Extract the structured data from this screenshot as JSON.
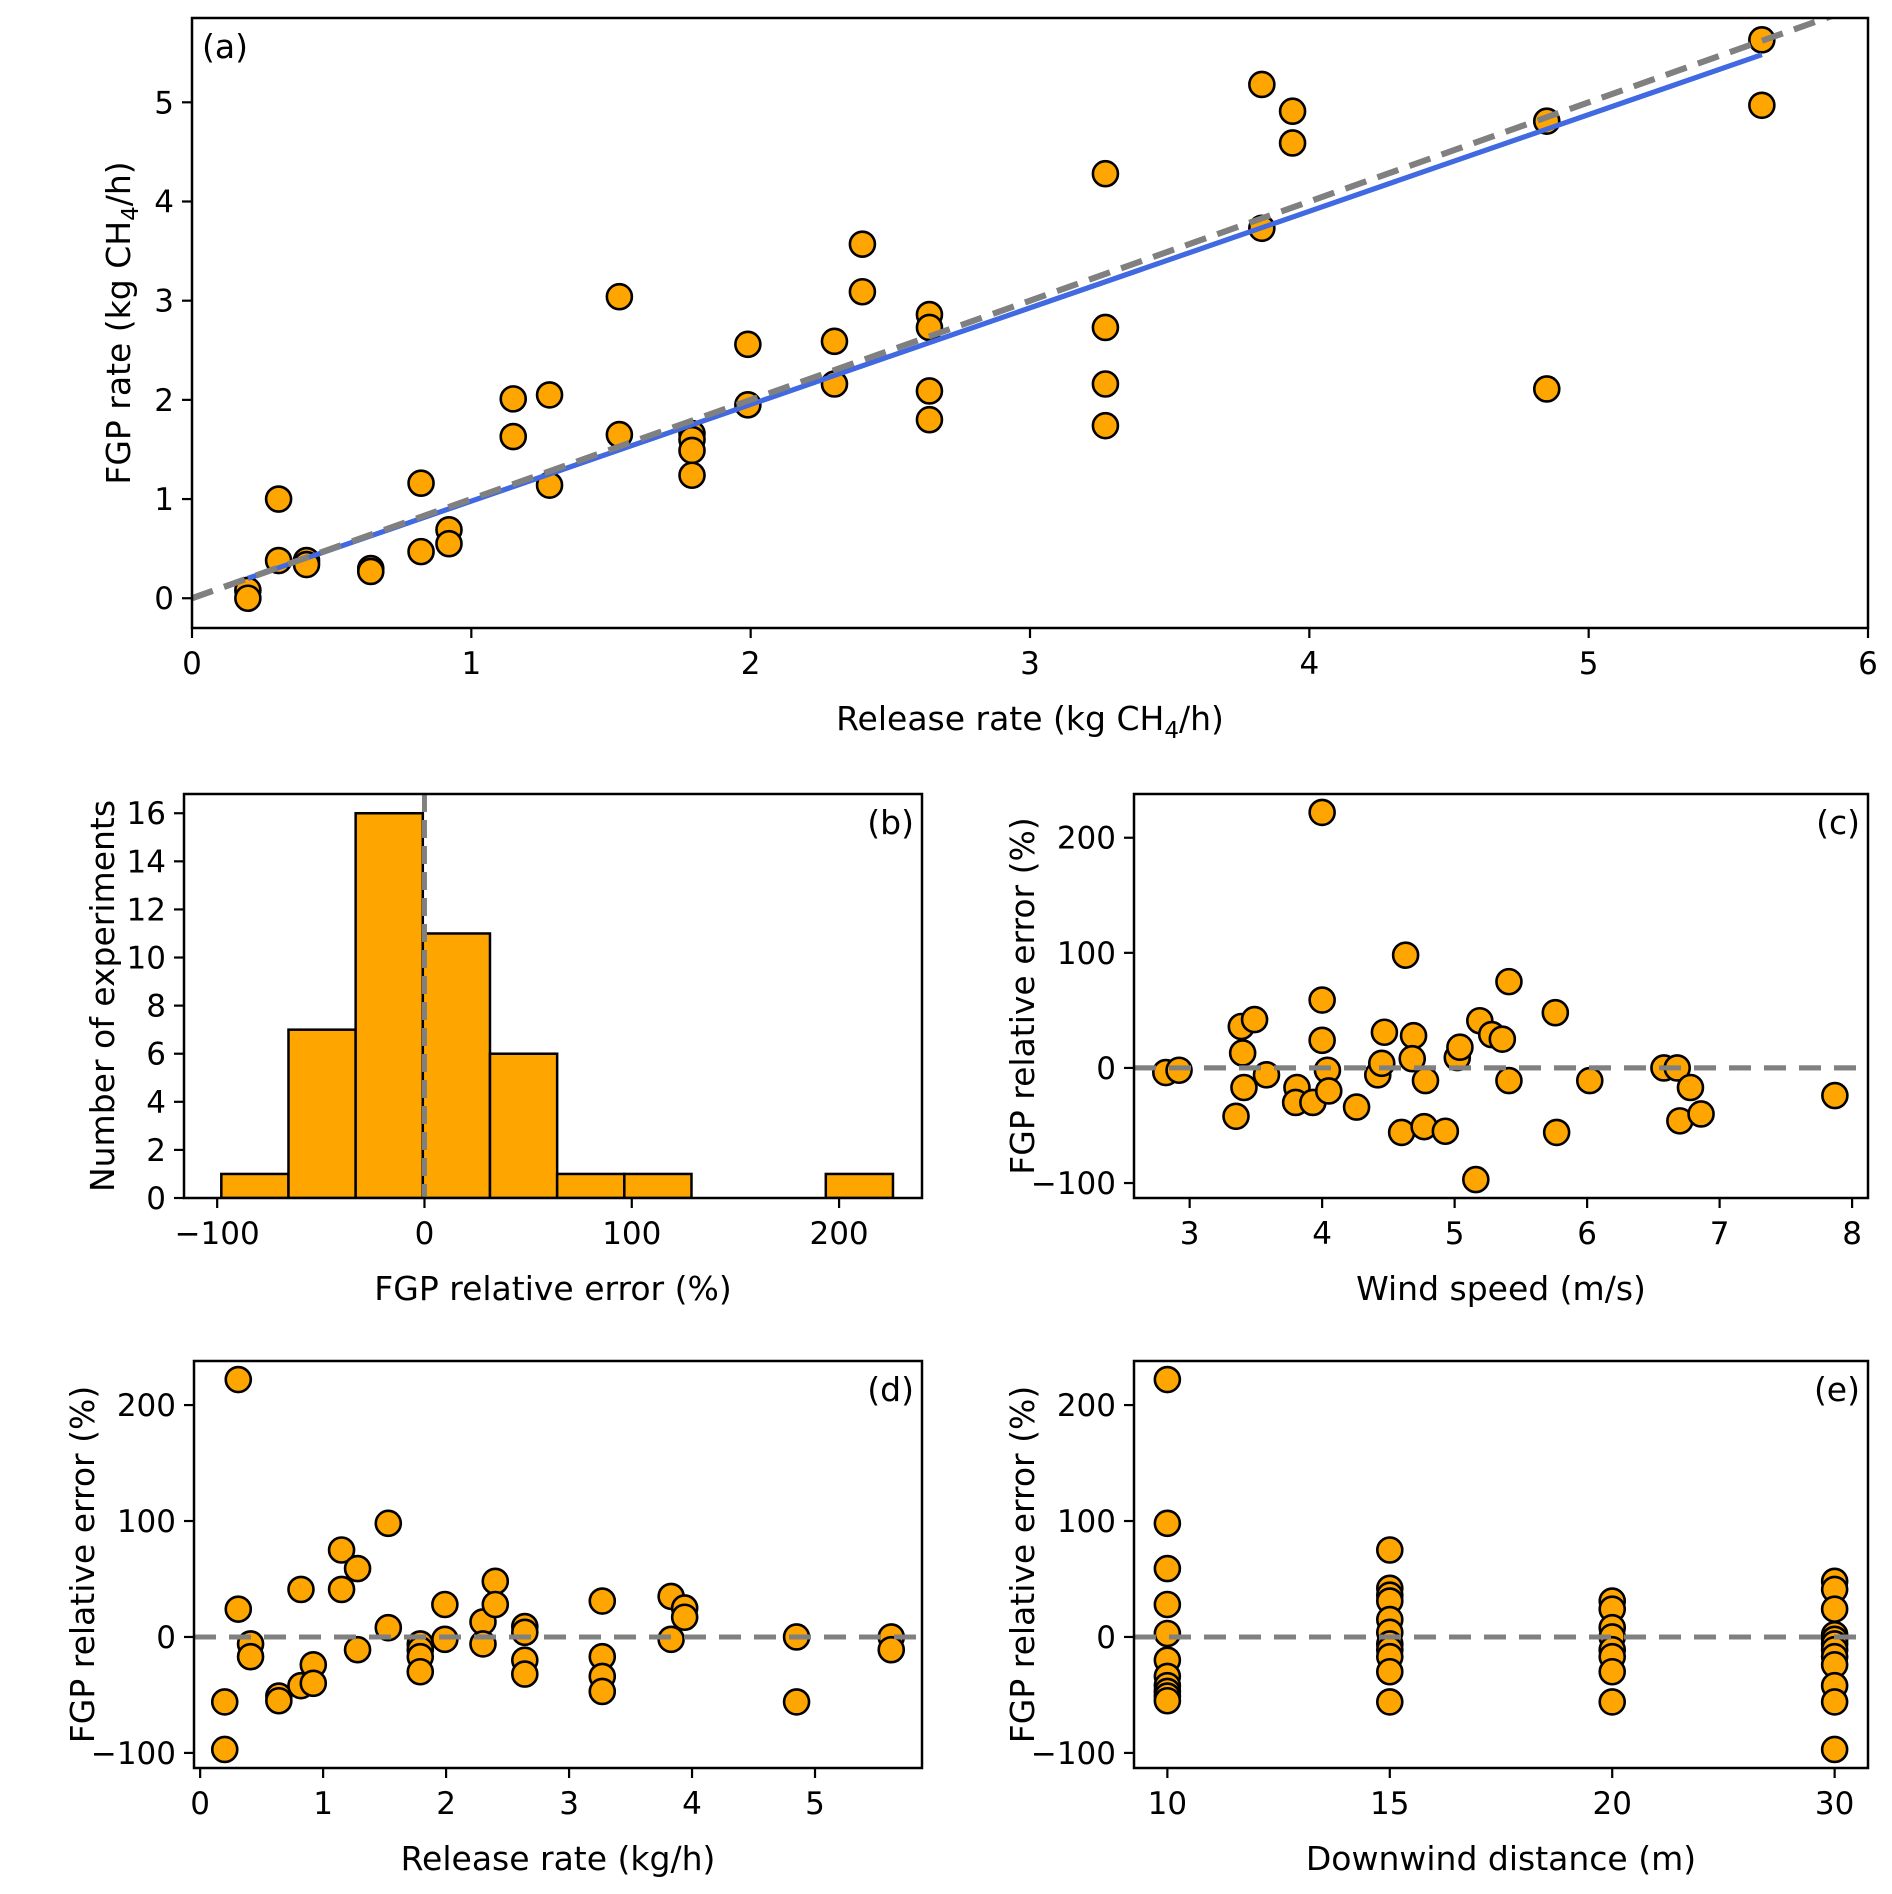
{
  "figure": {
    "marker_color": "#FFA500",
    "marker_edge": "#000000",
    "fit_color": "#4169E1",
    "ref_color": "#808080"
  },
  "chart_data": [
    {
      "id": "a",
      "type": "scatter",
      "panel_label": "(a)",
      "xlabel": "Release rate (kg CH4/h)",
      "xlabel_parts": [
        "Release rate (kg CH",
        "4",
        "/h)"
      ],
      "ylabel": "FGP rate (kg CH4/h)",
      "ylabel_parts": [
        "FGP rate (kg CH",
        "4",
        "/h)"
      ],
      "xlim": [
        0,
        6
      ],
      "ylim": [
        -0.3,
        5.85
      ],
      "xticks": [
        0,
        1,
        2,
        3,
        4,
        5,
        6
      ],
      "yticks": [
        0,
        1,
        2,
        3,
        4,
        5
      ],
      "grid": false,
      "points": [
        [
          0.2,
          0.08
        ],
        [
          0.2,
          0.0
        ],
        [
          0.31,
          1.0
        ],
        [
          0.31,
          0.38
        ],
        [
          0.41,
          0.38
        ],
        [
          0.41,
          0.34
        ],
        [
          0.64,
          0.3
        ],
        [
          0.64,
          0.27
        ],
        [
          0.82,
          1.16
        ],
        [
          0.82,
          0.47
        ],
        [
          0.92,
          0.69
        ],
        [
          0.92,
          0.55
        ],
        [
          1.15,
          2.01
        ],
        [
          1.15,
          1.63
        ],
        [
          1.28,
          2.05
        ],
        [
          1.28,
          1.14
        ],
        [
          1.53,
          3.04
        ],
        [
          1.53,
          1.65
        ],
        [
          1.79,
          1.66
        ],
        [
          1.79,
          1.6
        ],
        [
          1.79,
          1.49
        ],
        [
          1.79,
          1.24
        ],
        [
          1.99,
          2.56
        ],
        [
          1.99,
          1.95
        ],
        [
          2.3,
          2.59
        ],
        [
          2.3,
          2.16
        ],
        [
          2.4,
          3.57
        ],
        [
          2.4,
          3.09
        ],
        [
          2.64,
          2.86
        ],
        [
          2.64,
          2.73
        ],
        [
          2.64,
          2.09
        ],
        [
          2.64,
          1.8
        ],
        [
          3.27,
          4.28
        ],
        [
          3.27,
          2.73
        ],
        [
          3.27,
          2.16
        ],
        [
          3.27,
          1.74
        ],
        [
          3.83,
          5.18
        ],
        [
          3.83,
          3.73
        ],
        [
          3.94,
          4.91
        ],
        [
          3.94,
          4.59
        ],
        [
          4.85,
          4.81
        ],
        [
          4.85,
          2.11
        ],
        [
          5.62,
          5.63
        ],
        [
          5.62,
          4.97
        ]
      ],
      "lines": [
        {
          "name": "linear-fit",
          "style": "solid",
          "color": "#4169E1",
          "x": [
            0.2,
            5.62
          ],
          "y": [
            0.2,
            5.48
          ]
        },
        {
          "name": "one-to-one",
          "style": "dashed",
          "color": "#808080",
          "x": [
            0,
            6
          ],
          "y": [
            0,
            6
          ]
        }
      ]
    },
    {
      "id": "b",
      "type": "bar",
      "subtype": "histogram",
      "panel_label": "(b)",
      "xlabel": "FGP relative error (%)",
      "ylabel": "Number of experiments",
      "xlim": [
        -116,
        240
      ],
      "ylim": [
        0,
        16.8
      ],
      "xticks": [
        -100,
        0,
        100,
        200
      ],
      "xtick_labels": [
        "−100",
        "0",
        "100",
        "200"
      ],
      "yticks": [
        0,
        2,
        4,
        6,
        8,
        10,
        12,
        14,
        16
      ],
      "bin_edges": [
        -98,
        -65.6,
        -33.2,
        -0.8,
        31.6,
        64,
        96.4,
        128.8,
        161.2,
        193.6,
        226
      ],
      "counts": [
        1,
        7,
        16,
        11,
        6,
        1,
        1,
        0,
        0,
        1
      ],
      "ref_line_x": 0,
      "grid": false
    },
    {
      "id": "c",
      "type": "scatter",
      "panel_label": "(c)",
      "xlabel": "Wind speed (m/s)",
      "ylabel": "FGP relative error (%)",
      "xlim": [
        2.58,
        8.12
      ],
      "ylim": [
        -113,
        238
      ],
      "xticks": [
        3,
        4,
        5,
        6,
        7,
        8
      ],
      "yticks": [
        -100,
        0,
        100,
        200
      ],
      "ytick_labels": [
        "−100",
        "0",
        "100",
        "200"
      ],
      "ref_line_y": 0,
      "grid": false,
      "points": [
        [
          2.82,
          -4
        ],
        [
          2.92,
          -2
        ],
        [
          3.35,
          -42
        ],
        [
          3.39,
          36
        ],
        [
          3.4,
          13
        ],
        [
          3.41,
          -17
        ],
        [
          3.49,
          42
        ],
        [
          3.58,
          -6
        ],
        [
          3.81,
          -17
        ],
        [
          3.8,
          -30
        ],
        [
          3.93,
          -30
        ],
        [
          4.0,
          222
        ],
        [
          4.0,
          59
        ],
        [
          4.0,
          24
        ],
        [
          4.04,
          -2
        ],
        [
          4.05,
          -20
        ],
        [
          4.26,
          -34
        ],
        [
          4.42,
          -6
        ],
        [
          4.47,
          31
        ],
        [
          4.45,
          4
        ],
        [
          4.6,
          -56
        ],
        [
          4.63,
          98
        ],
        [
          4.69,
          28
        ],
        [
          4.68,
          8
        ],
        [
          4.77,
          -51
        ],
        [
          4.78,
          -11
        ],
        [
          4.93,
          -55
        ],
        [
          5.02,
          9
        ],
        [
          5.04,
          18
        ],
        [
          5.16,
          -97
        ],
        [
          5.19,
          41
        ],
        [
          5.28,
          29
        ],
        [
          5.36,
          25
        ],
        [
          5.41,
          75
        ],
        [
          5.41,
          -11
        ],
        [
          5.76,
          48
        ],
        [
          5.77,
          -56
        ],
        [
          6.02,
          -11
        ],
        [
          6.58,
          0
        ],
        [
          6.68,
          0
        ],
        [
          6.7,
          -46
        ],
        [
          6.78,
          -17
        ],
        [
          6.86,
          -40
        ],
        [
          7.87,
          -24
        ]
      ]
    },
    {
      "id": "d",
      "type": "scatter",
      "panel_label": "(d)",
      "xlabel": "Release rate (kg/h)",
      "ylabel": "FGP relative error (%)",
      "xlim": [
        -0.05,
        5.87
      ],
      "ylim": [
        -113,
        238
      ],
      "xticks": [
        0,
        1,
        2,
        3,
        4,
        5
      ],
      "yticks": [
        -100,
        0,
        100,
        200
      ],
      "ytick_labels": [
        "−100",
        "0",
        "100",
        "200"
      ],
      "ref_line_y": 0,
      "grid": false,
      "points": [
        [
          0.2,
          -56
        ],
        [
          0.2,
          -97
        ],
        [
          0.31,
          222
        ],
        [
          0.31,
          24
        ],
        [
          0.41,
          -6
        ],
        [
          0.41,
          -17
        ],
        [
          0.64,
          -51
        ],
        [
          0.64,
          -55
        ],
        [
          0.82,
          41
        ],
        [
          0.82,
          -42
        ],
        [
          0.92,
          -24
        ],
        [
          0.92,
          -40
        ],
        [
          1.15,
          75
        ],
        [
          1.15,
          41
        ],
        [
          1.28,
          59
        ],
        [
          1.28,
          -11
        ],
        [
          1.53,
          98
        ],
        [
          1.53,
          8
        ],
        [
          1.79,
          -6
        ],
        [
          1.79,
          -11
        ],
        [
          1.79,
          -17
        ],
        [
          1.79,
          -30
        ],
        [
          1.99,
          28
        ],
        [
          1.99,
          -2
        ],
        [
          2.3,
          13
        ],
        [
          2.3,
          -6
        ],
        [
          2.4,
          48
        ],
        [
          2.4,
          28
        ],
        [
          2.64,
          9
        ],
        [
          2.64,
          4
        ],
        [
          2.64,
          -20
        ],
        [
          2.64,
          -32
        ],
        [
          3.27,
          31
        ],
        [
          3.27,
          -17
        ],
        [
          3.27,
          -34
        ],
        [
          3.27,
          -47
        ],
        [
          3.83,
          35
        ],
        [
          3.83,
          -2
        ],
        [
          3.94,
          25
        ],
        [
          3.94,
          17
        ],
        [
          4.85,
          0
        ],
        [
          4.85,
          -56
        ],
        [
          5.62,
          0
        ],
        [
          5.62,
          -11
        ]
      ]
    },
    {
      "id": "e",
      "type": "scatter",
      "panel_label": "(e)",
      "xlabel": "Downwind distance (m)",
      "ylabel": "FGP relative error (%)",
      "xlim": [
        -0.15,
        3.15
      ],
      "ylim": [
        -113,
        238
      ],
      "xticks": [
        0,
        1,
        2,
        3
      ],
      "xtick_labels": [
        "10",
        "15",
        "20",
        "30"
      ],
      "yticks": [
        -100,
        0,
        100,
        200
      ],
      "ytick_labels": [
        "−100",
        "0",
        "100",
        "200"
      ],
      "ref_line_y": 0,
      "grid": false,
      "categories": [
        "10",
        "15",
        "20",
        "30"
      ],
      "points": [
        [
          0,
          222
        ],
        [
          0,
          98
        ],
        [
          0,
          59
        ],
        [
          0,
          28
        ],
        [
          0,
          3
        ],
        [
          0,
          -20
        ],
        [
          0,
          -34
        ],
        [
          0,
          -42
        ],
        [
          0,
          -47
        ],
        [
          0,
          -51
        ],
        [
          0,
          -55
        ],
        [
          1,
          75
        ],
        [
          1,
          42
        ],
        [
          1,
          36
        ],
        [
          1,
          31
        ],
        [
          1,
          15
        ],
        [
          1,
          4
        ],
        [
          1,
          -6
        ],
        [
          1,
          -11
        ],
        [
          1,
          -17
        ],
        [
          1,
          -30
        ],
        [
          1,
          -56
        ],
        [
          2,
          31
        ],
        [
          2,
          24
        ],
        [
          2,
          8
        ],
        [
          2,
          0
        ],
        [
          2,
          -11
        ],
        [
          2,
          -17
        ],
        [
          2,
          -30
        ],
        [
          2,
          -56
        ],
        [
          3,
          48
        ],
        [
          3,
          41
        ],
        [
          3,
          24
        ],
        [
          3,
          2
        ],
        [
          3,
          -2
        ],
        [
          3,
          -6
        ],
        [
          3,
          -11
        ],
        [
          3,
          -17
        ],
        [
          3,
          -24
        ],
        [
          3,
          -42
        ],
        [
          3,
          -56
        ],
        [
          3,
          -97
        ]
      ]
    }
  ]
}
